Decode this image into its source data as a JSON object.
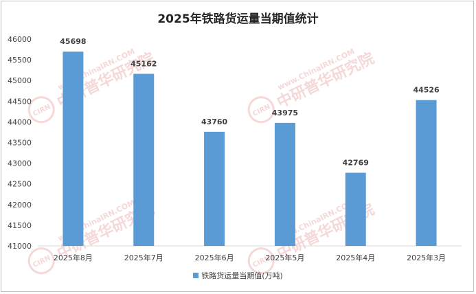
{
  "chart_data": {
    "type": "bar",
    "title": "2025年铁路货运量当期值统计",
    "categories": [
      "2025年8月",
      "2025年7月",
      "2025年6月",
      "2025年5月",
      "2025年4月",
      "2025年3月"
    ],
    "series": [
      {
        "name": "铁路货运量当期值(万吨)",
        "values": [
          45698,
          45162,
          43760,
          43975,
          42769,
          44526
        ],
        "color": "#5b9bd5"
      }
    ],
    "ylim": [
      41000,
      46000
    ],
    "yticks": [
      41000,
      41500,
      42000,
      42500,
      43000,
      43500,
      44000,
      44500,
      45000,
      45500,
      46000
    ],
    "grid": false,
    "legend_position": "bottom",
    "xlabel": "",
    "ylabel": ""
  },
  "watermark": {
    "brand": "中研普华研究院",
    "url": "www.ChinaIRN.COM",
    "logo": "CIRN"
  }
}
